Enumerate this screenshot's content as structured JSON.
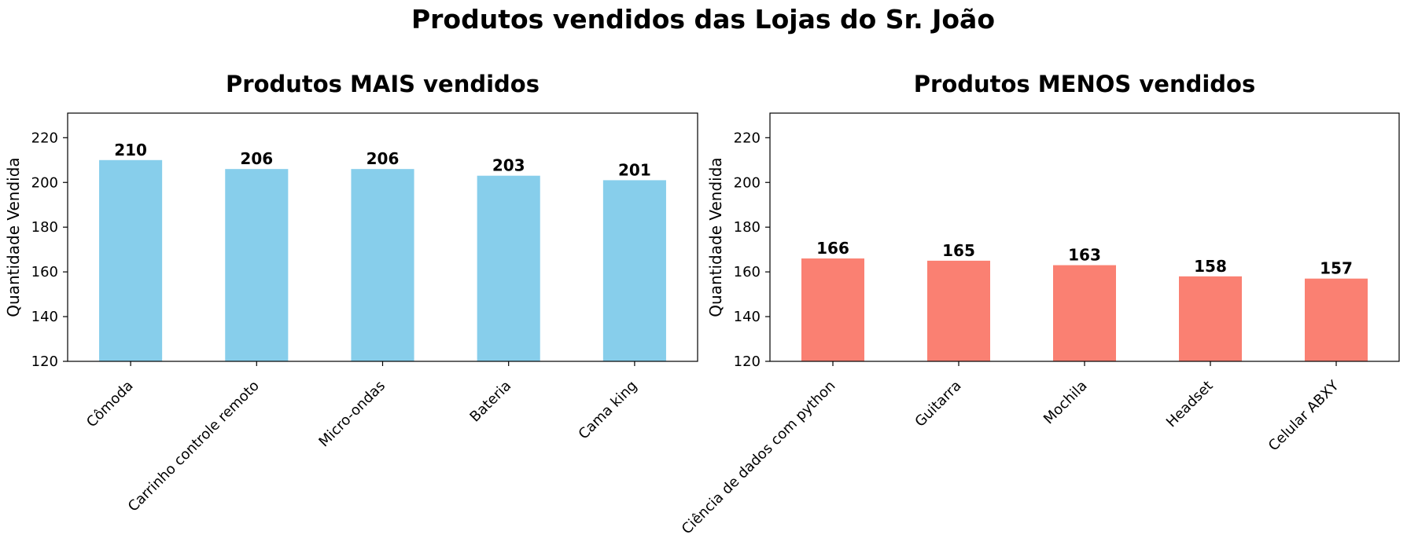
{
  "figure": {
    "suptitle": "Produtos vendidos das Lojas do Sr. João"
  },
  "chart_data": [
    {
      "type": "bar",
      "title": "Produtos MAIS vendidos",
      "xlabel": "",
      "ylabel": "Quantidade Vendida",
      "categories": [
        "Cômoda",
        "Carrinho controle remoto",
        "Micro-ondas",
        "Bateria",
        "Cama king"
      ],
      "values": [
        210,
        206,
        206,
        203,
        201
      ],
      "ylim": [
        120,
        231
      ],
      "yticks": [
        120,
        140,
        160,
        180,
        200,
        220
      ],
      "bar_color": "#87ceeb",
      "grid": false
    },
    {
      "type": "bar",
      "title": "Produtos MENOS vendidos",
      "xlabel": "",
      "ylabel": "Quantidade Vendida",
      "categories": [
        "Ciência de dados com python",
        "Guitarra",
        "Mochila",
        "Headset",
        "Celular ABXY"
      ],
      "values": [
        166,
        165,
        163,
        158,
        157
      ],
      "ylim": [
        120,
        231
      ],
      "yticks": [
        120,
        140,
        160,
        180,
        200,
        220
      ],
      "bar_color": "#fa8072",
      "grid": false
    }
  ]
}
